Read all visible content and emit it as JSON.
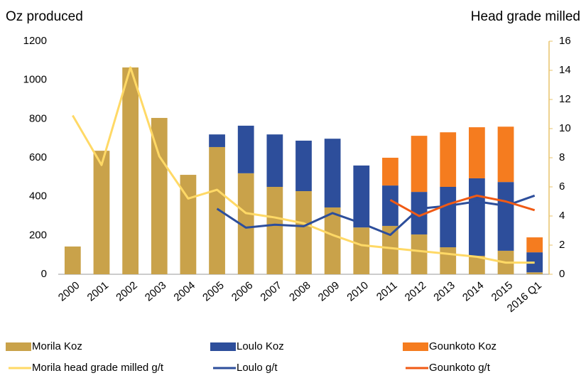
{
  "chart_data": {
    "type": "bar",
    "y_axis_title": "Oz produced",
    "y2_axis_title": "Head grade milled",
    "categories": [
      "2000",
      "2001",
      "2002",
      "2003",
      "2004",
      "2005",
      "2006",
      "2007",
      "2008",
      "2009",
      "2010",
      "2011",
      "2012",
      "2013",
      "2014",
      "2015",
      "2016 Q1"
    ],
    "ylim": [
      0,
      1200
    ],
    "yticks": [
      0,
      200,
      400,
      600,
      800,
      1000,
      1200
    ],
    "y2lim": [
      0,
      16
    ],
    "y2ticks": [
      0,
      2,
      4,
      6,
      8,
      10,
      12,
      14,
      16
    ],
    "stacked": true,
    "grid": false,
    "series": [
      {
        "name": "Morila Koz",
        "type": "bar",
        "color": "#c9a24a",
        "values": [
          143,
          636,
          1065,
          805,
          512,
          655,
          520,
          450,
          428,
          344,
          241,
          249,
          205,
          139,
          95,
          121,
          10
        ]
      },
      {
        "name": "Loulo Koz",
        "type": "bar",
        "color": "#2d4e9b",
        "values": [
          null,
          null,
          null,
          null,
          null,
          65,
          245,
          270,
          260,
          354,
          319,
          208,
          219,
          311,
          399,
          354,
          103
        ]
      },
      {
        "name": "Gounkoto Koz",
        "type": "bar",
        "color": "#f57c1f",
        "values": [
          null,
          null,
          null,
          null,
          null,
          null,
          null,
          null,
          null,
          null,
          null,
          143,
          289,
          281,
          263,
          285,
          77
        ]
      },
      {
        "name": "Morila head grade milled g/t",
        "type": "line",
        "axis": "y2",
        "color": "#ffd966",
        "values": [
          10.9,
          7.5,
          14.2,
          8.1,
          5.2,
          5.8,
          4.2,
          3.9,
          3.5,
          2.7,
          2.0,
          1.8,
          1.6,
          1.4,
          1.2,
          0.8,
          0.8
        ]
      },
      {
        "name": "Loulo g/t",
        "type": "line",
        "axis": "y2",
        "color": "#2d4e9b",
        "values": [
          null,
          null,
          null,
          null,
          null,
          4.5,
          3.2,
          3.4,
          3.3,
          4.2,
          3.5,
          2.7,
          4.5,
          4.7,
          5.0,
          4.7,
          5.4
        ]
      },
      {
        "name": "Gounkoto g/t",
        "type": "line",
        "axis": "y2",
        "color": "#f05a14",
        "values": [
          null,
          null,
          null,
          null,
          null,
          null,
          null,
          null,
          null,
          null,
          null,
          5.1,
          4.0,
          4.8,
          5.4,
          5.0,
          4.4
        ]
      }
    ]
  }
}
